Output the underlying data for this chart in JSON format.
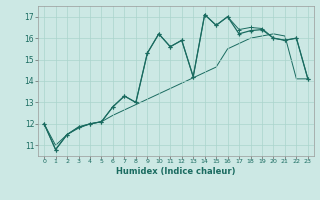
{
  "title": "",
  "xlabel": "Humidex (Indice chaleur)",
  "background_color": "#cce8e4",
  "line_color": "#1a6b60",
  "xlim": [
    -0.5,
    23.5
  ],
  "ylim": [
    10.5,
    17.5
  ],
  "xticks": [
    0,
    1,
    2,
    3,
    4,
    5,
    6,
    7,
    8,
    9,
    10,
    11,
    12,
    13,
    14,
    15,
    16,
    17,
    18,
    19,
    20,
    21,
    22,
    23
  ],
  "yticks": [
    11,
    12,
    13,
    14,
    15,
    16,
    17
  ],
  "grid_color": "#aad4cc",
  "line1_x": [
    0,
    1,
    2,
    3,
    4,
    5,
    6,
    7,
    8,
    9,
    10,
    11,
    12,
    13,
    14,
    15,
    16,
    17,
    18,
    19,
    20,
    21,
    22,
    23
  ],
  "line1_y": [
    12.0,
    10.8,
    11.5,
    11.85,
    12.0,
    12.1,
    12.8,
    13.3,
    13.0,
    15.3,
    16.2,
    15.6,
    15.9,
    14.2,
    17.1,
    16.6,
    17.0,
    16.2,
    16.35,
    16.4,
    16.0,
    15.9,
    16.0,
    14.1
  ],
  "line2_x": [
    0,
    1,
    2,
    3,
    4,
    5,
    6,
    7,
    8,
    9,
    10,
    11,
    12,
    13,
    14,
    15,
    16,
    17,
    18,
    19,
    20,
    21,
    22,
    23
  ],
  "line2_y": [
    12.0,
    10.8,
    11.5,
    11.85,
    12.0,
    12.1,
    12.8,
    13.3,
    13.0,
    15.3,
    16.2,
    15.6,
    15.9,
    14.2,
    17.1,
    16.6,
    17.0,
    16.4,
    16.5,
    16.45,
    16.0,
    15.9,
    16.0,
    14.1
  ],
  "line3_x": [
    0,
    1,
    2,
    3,
    4,
    5,
    6,
    7,
    8,
    9,
    10,
    11,
    12,
    13,
    14,
    15,
    16,
    17,
    18,
    19,
    20,
    21,
    22,
    23
  ],
  "line3_y": [
    12.0,
    11.0,
    11.5,
    11.8,
    12.0,
    12.1,
    12.4,
    12.65,
    12.9,
    13.15,
    13.4,
    13.65,
    13.9,
    14.15,
    14.4,
    14.65,
    15.5,
    15.75,
    16.0,
    16.1,
    16.2,
    16.1,
    14.1,
    14.1
  ]
}
